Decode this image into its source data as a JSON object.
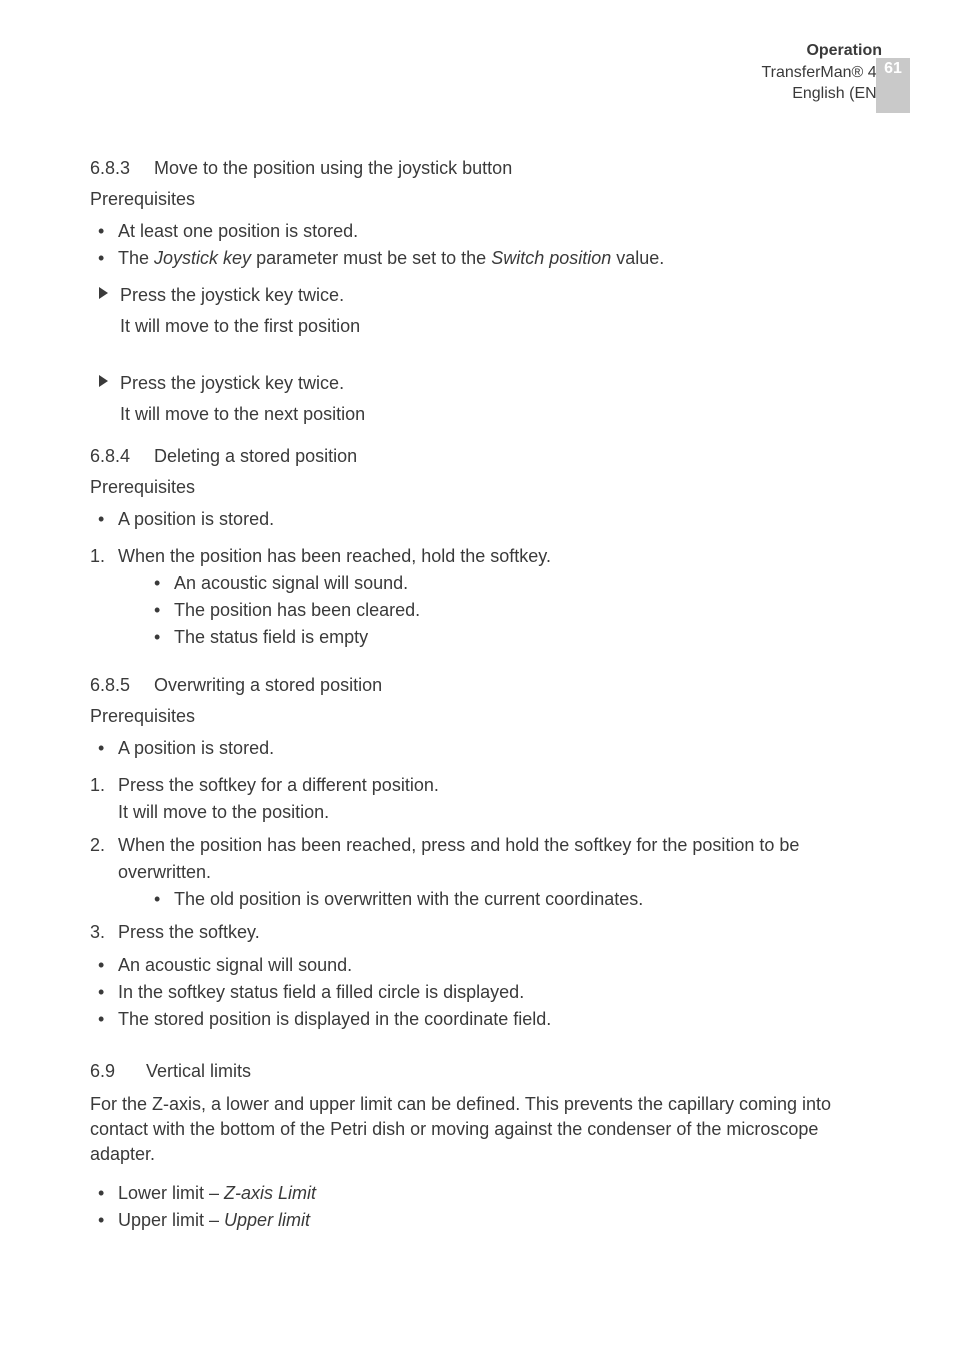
{
  "header": {
    "label": "Operation",
    "product": "TransferMan® 4r",
    "lang": "English (EN)",
    "page_number": "61"
  },
  "sec_683": {
    "num": "6.8.3",
    "title": "Move to the position using the joystick button",
    "prereq_label": "Prerequisites",
    "bullet1": "At least one position is stored.",
    "bullet2_a": "The ",
    "bullet2_b": "Joystick key",
    "bullet2_c": " parameter must be set to the ",
    "bullet2_d": "Switch position",
    "bullet2_e": " value.",
    "arrow1": "Press the joystick key twice.",
    "arrow1_sub": "It will move to the first position",
    "arrow2": "Press the joystick key twice.",
    "arrow2_sub": "It will move to the next position"
  },
  "sec_684": {
    "num": "6.8.4",
    "title": "Deleting a stored position",
    "prereq_label": "Prerequisites",
    "bullet1": "A position is stored.",
    "step1": "When the position has been reached, hold the softkey.",
    "step1_s1": "An acoustic signal will sound.",
    "step1_s2": "The position has been cleared.",
    "step1_s3": "The status field is empty"
  },
  "sec_685": {
    "num": "6.8.5",
    "title": "Overwriting a stored position",
    "prereq_label": "Prerequisites",
    "bullet1": "A position is stored.",
    "step1_a": "Press the softkey for a different position.",
    "step1_b": "It will move to the position.",
    "step2": "When the position has been reached, press and hold the softkey for the position to be overwritten.",
    "step2_s1": "The old position is overwritten with the current coordinates.",
    "step3": "Press the softkey.",
    "post_b1": "An acoustic signal will sound.",
    "post_b2": "In the softkey status field a filled circle is displayed.",
    "post_b3": "The stored position is displayed in the coordinate field."
  },
  "sec_69": {
    "num": "6.9",
    "title": "Vertical limits",
    "para": "For the Z-axis, a lower and upper limit can be defined. This prevents the capillary coming into contact with the bottom of the Petri dish or moving against the condenser of the microscope adapter.",
    "b1_a": "Lower limit – ",
    "b1_b": "Z-axis Limit",
    "b2_a": "Upper limit – ",
    "b2_b": "Upper limit"
  }
}
